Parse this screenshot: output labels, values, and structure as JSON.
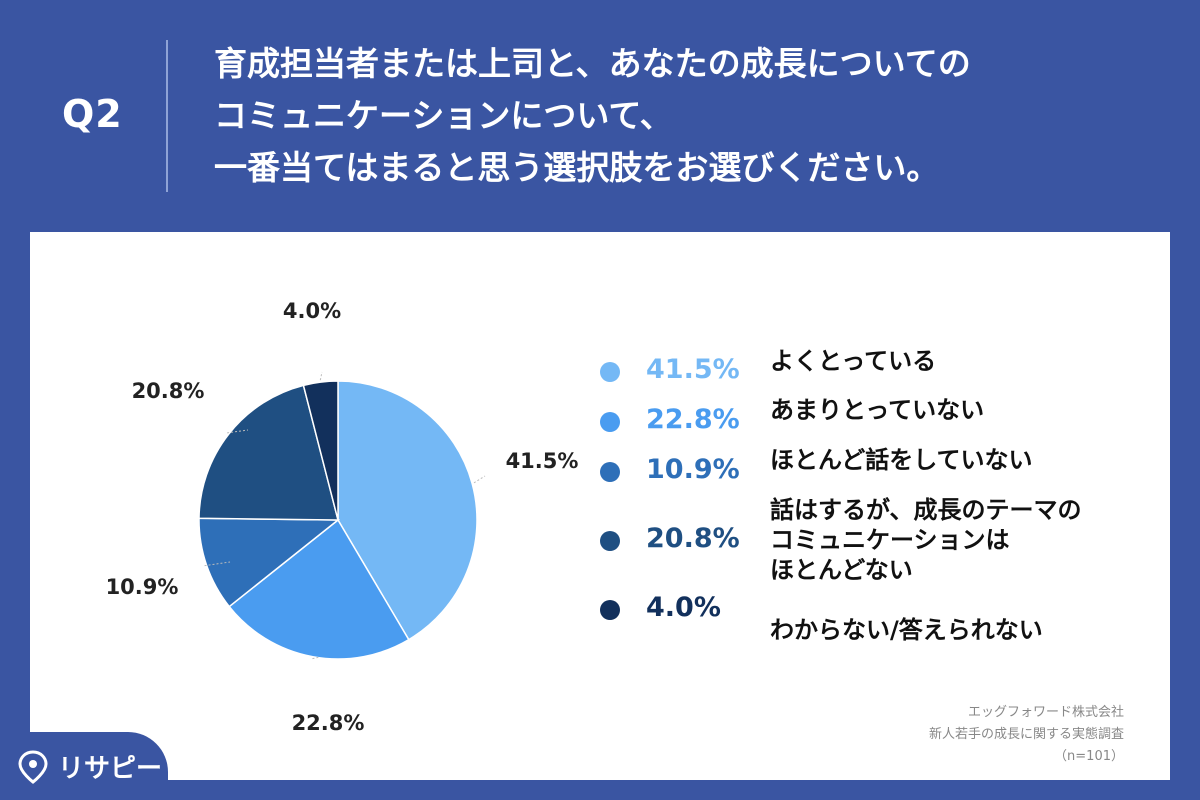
{
  "header": {
    "question_number": "Q2",
    "question_lines": [
      "育成担当者または上司と、あなたの成長についての",
      "コミュニケーションについて、",
      "一番当てはまると思う選択肢をお選びください。"
    ]
  },
  "chart_data": {
    "type": "pie",
    "categories": [
      "よくとっている",
      "あまりとっていない",
      "ほとんど話をしていない",
      "話はするが、成長のテーマのコミュニケーションはほとんどない",
      "わからない/答えられない"
    ],
    "values": [
      41.5,
      22.8,
      10.9,
      20.8,
      4.0
    ],
    "labels": [
      "41.5%",
      "22.8%",
      "10.9%",
      "20.8%",
      "4.0%"
    ],
    "colors": [
      "#74b8f5",
      "#4a9cf0",
      "#2e6fb8",
      "#1f4f82",
      "#12305c"
    ],
    "start_angle": "12 o'clock",
    "direction": "clockwise",
    "legend": {
      "placement": "right",
      "values": [
        "41.5%",
        "22.8%",
        "10.9%",
        "20.8%",
        "4.0%"
      ],
      "labels": [
        [
          "よくとっている"
        ],
        [
          "あまりとっていない"
        ],
        [
          "ほとんど話をしていない"
        ],
        [
          "話はするが、成長のテーマの",
          "コミュニケーションは",
          "ほとんどない"
        ],
        [
          "わからない/答えられない"
        ]
      ]
    }
  },
  "credit": {
    "company": "エッグフォワード株式会社",
    "survey": "新人若手の成長に関する実態調査",
    "sample": "（n=101）"
  },
  "logo": {
    "text": "リサピー",
    "icon": "pin-icon"
  }
}
